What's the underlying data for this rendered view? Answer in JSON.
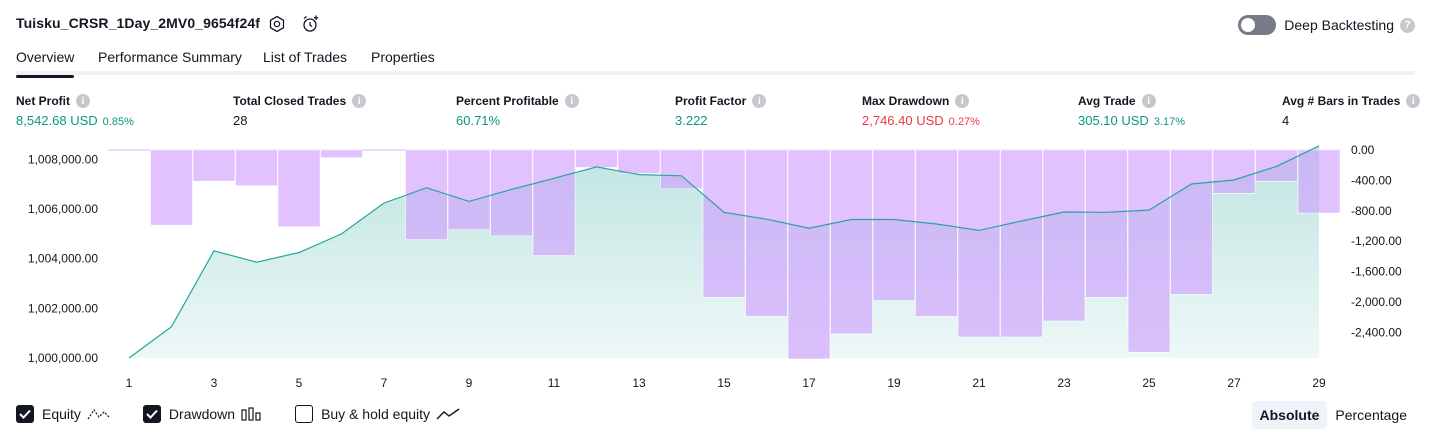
{
  "header": {
    "title": "Tuisku_CRSR_1Day_2MV0_9654f24f",
    "settings_icon": "settings-hex-icon",
    "alert_icon": "alarm-clock-add-icon",
    "deep_backtesting_label": "Deep Backtesting",
    "deep_backtesting_enabled": false,
    "help_glyph": "?"
  },
  "tabs": [
    {
      "label": "Overview",
      "active": true
    },
    {
      "label": "Performance Summary",
      "active": false
    },
    {
      "label": "List of Trades",
      "active": false
    },
    {
      "label": "Properties",
      "active": false
    }
  ],
  "stats": [
    {
      "label": "Net Profit",
      "value": "8,542.68 USD",
      "pct": "0.85%",
      "tone": "pos"
    },
    {
      "label": "Total Closed Trades",
      "value": "28",
      "pct": "",
      "tone": "neu"
    },
    {
      "label": "Percent Profitable",
      "value": "60.71%",
      "pct": "",
      "tone": "pos"
    },
    {
      "label": "Profit Factor",
      "value": "3.222",
      "pct": "",
      "tone": "pos"
    },
    {
      "label": "Max Drawdown",
      "value": "2,746.40 USD",
      "pct": "0.27%",
      "tone": "neg"
    },
    {
      "label": "Avg Trade",
      "value": "305.10 USD",
      "pct": "3.17%",
      "tone": "pos"
    },
    {
      "label": "Avg # Bars in Trades",
      "value": "4",
      "pct": "",
      "tone": "neu"
    }
  ],
  "info_glyph": "i",
  "chart_data": {
    "type": "line+bar",
    "x": [
      1,
      2,
      3,
      4,
      5,
      6,
      7,
      8,
      9,
      10,
      11,
      12,
      13,
      14,
      15,
      16,
      17,
      18,
      19,
      20,
      21,
      22,
      23,
      24,
      25,
      26,
      27,
      28,
      29
    ],
    "x_tick_labels": [
      "1",
      "3",
      "5",
      "7",
      "9",
      "11",
      "13",
      "15",
      "17",
      "19",
      "21",
      "23",
      "25",
      "27",
      "29"
    ],
    "left_axis": {
      "ylim": [
        1000000,
        1008500
      ],
      "tick_labels": [
        "1,008,000.00",
        "1,006,000.00",
        "1,004,000.00",
        "1,002,000.00",
        "1,000,000.00"
      ],
      "tick_values": [
        1008000,
        1006000,
        1004000,
        1002000,
        1000000
      ]
    },
    "right_axis": {
      "ylim": [
        -2750,
        0
      ],
      "tick_labels": [
        "0.00",
        "-400.00",
        "-800.00",
        "-1,200.00",
        "-1,600.00",
        "-2,000.00",
        "-2,400.00"
      ],
      "tick_values": [
        0,
        -400,
        -800,
        -1200,
        -1600,
        -2000,
        -2400
      ]
    },
    "series": [
      {
        "name": "Equity",
        "axis": "left",
        "color": "#26a69a",
        "values": [
          1000000,
          1001260,
          1004320,
          1003860,
          1004250,
          1005000,
          1006240,
          1006860,
          1006310,
          1006790,
          1007240,
          1007700,
          1007390,
          1007340,
          1005870,
          1005590,
          1005230,
          1005580,
          1005580,
          1005400,
          1005140,
          1005520,
          1005880,
          1005870,
          1005960,
          1007010,
          1007170,
          1007720,
          1008542.68
        ]
      },
      {
        "name": "Drawdown",
        "axis": "right",
        "color": "#d9b8ff",
        "values": [
          0,
          -990,
          -410,
          -470,
          -1010,
          -100,
          0,
          -1180,
          -1050,
          -1130,
          -1390,
          -230,
          -310,
          -510,
          -1940,
          -2190,
          -2750,
          -2420,
          -1980,
          -2190,
          -2460,
          -2460,
          -2250,
          -1940,
          -2660,
          -1900,
          -570,
          -410,
          -830
        ]
      }
    ]
  },
  "legend": [
    {
      "label": "Equity",
      "checked": true,
      "icon": "equity-line-icon"
    },
    {
      "label": "Drawdown",
      "checked": true,
      "icon": "drawdown-bars-icon"
    },
    {
      "label": "Buy & hold equity",
      "checked": false,
      "icon": "buy-hold-line-icon"
    }
  ],
  "modes": [
    {
      "label": "Absolute",
      "active": true
    },
    {
      "label": "Percentage",
      "active": false
    }
  ],
  "colors": {
    "positive": "#089981",
    "negative": "#f23645",
    "equity_line": "#26a69a",
    "drawdown_fill": "#d9b8ff",
    "text": "#131722"
  }
}
